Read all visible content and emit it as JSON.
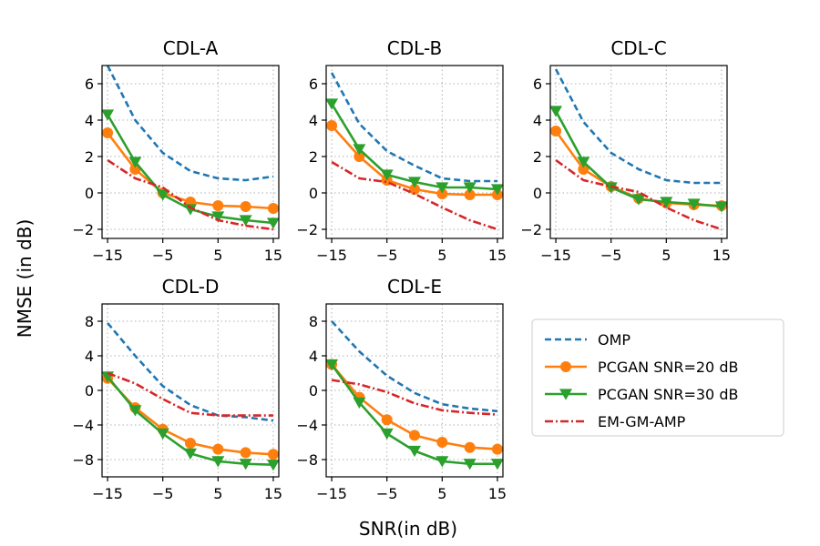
{
  "figure": {
    "xlabel": "SNR(in dB)",
    "ylabel": "NMSE (in dB)"
  },
  "legend": {
    "placement": "right-middle",
    "entries": [
      {
        "name": "OMP",
        "color": "#1f77b4",
        "dash": "dashed",
        "marker": "none"
      },
      {
        "name": "PCGAN SNR=20 dB",
        "color": "#ff7f0e",
        "dash": "solid",
        "marker": "circle"
      },
      {
        "name": "PCGAN SNR=30 dB",
        "color": "#2ca02c",
        "dash": "solid",
        "marker": "triangle-down"
      },
      {
        "name": "EM-GM-AMP",
        "color": "#d62728",
        "dash": "dashdot",
        "marker": "none"
      }
    ]
  },
  "chart_data": [
    {
      "type": "line",
      "title": "CDL-A",
      "grid": true,
      "x": [
        -15,
        -10,
        -5,
        0,
        5,
        10,
        15
      ],
      "xlim": [
        -16,
        16
      ],
      "ylim": [
        -2.5,
        7
      ],
      "xticks": [
        -15,
        -5,
        5,
        15
      ],
      "yticks": [
        -2,
        0,
        2,
        4,
        6
      ],
      "series": [
        {
          "name": "OMP",
          "values": [
            7.0,
            4.0,
            2.2,
            1.2,
            0.8,
            0.7,
            0.9
          ]
        },
        {
          "name": "PCGAN SNR=20 dB",
          "values": [
            3.3,
            1.3,
            0.0,
            -0.5,
            -0.7,
            -0.75,
            -0.85
          ]
        },
        {
          "name": "PCGAN SNR=30 dB",
          "values": [
            4.3,
            1.7,
            -0.1,
            -0.9,
            -1.3,
            -1.5,
            -1.65
          ]
        },
        {
          "name": "EM-GM-AMP",
          "values": [
            1.8,
            0.8,
            0.3,
            -0.8,
            -1.5,
            -1.8,
            -2.0
          ]
        }
      ]
    },
    {
      "type": "line",
      "title": "CDL-B",
      "grid": true,
      "x": [
        -15,
        -10,
        -5,
        0,
        5,
        10,
        15
      ],
      "xlim": [
        -16,
        16
      ],
      "ylim": [
        -2.5,
        7
      ],
      "xticks": [
        -15,
        -5,
        5,
        15
      ],
      "yticks": [
        -2,
        0,
        2,
        4,
        6
      ],
      "series": [
        {
          "name": "OMP",
          "values": [
            6.6,
            3.8,
            2.3,
            1.5,
            0.8,
            0.65,
            0.65
          ]
        },
        {
          "name": "PCGAN SNR=20 dB",
          "values": [
            3.7,
            2.0,
            0.7,
            0.2,
            -0.05,
            -0.1,
            -0.1
          ]
        },
        {
          "name": "PCGAN SNR=30 dB",
          "values": [
            4.9,
            2.4,
            1.0,
            0.6,
            0.3,
            0.3,
            0.2
          ]
        },
        {
          "name": "EM-GM-AMP",
          "values": [
            1.7,
            0.8,
            0.6,
            -0.05,
            -0.8,
            -1.5,
            -2.0
          ]
        }
      ]
    },
    {
      "type": "line",
      "title": "CDL-C",
      "grid": true,
      "x": [
        -15,
        -10,
        -5,
        0,
        5,
        10,
        15
      ],
      "xlim": [
        -16,
        16
      ],
      "ylim": [
        -2.5,
        7
      ],
      "xticks": [
        -15,
        -5,
        5,
        15
      ],
      "yticks": [
        -2,
        0,
        2,
        4,
        6
      ],
      "series": [
        {
          "name": "OMP",
          "values": [
            6.8,
            3.9,
            2.2,
            1.3,
            0.7,
            0.55,
            0.55
          ]
        },
        {
          "name": "PCGAN SNR=20 dB",
          "values": [
            3.4,
            1.3,
            0.35,
            -0.3,
            -0.55,
            -0.65,
            -0.7
          ]
        },
        {
          "name": "PCGAN SNR=30 dB",
          "values": [
            4.5,
            1.7,
            0.3,
            -0.35,
            -0.5,
            -0.6,
            -0.75
          ]
        },
        {
          "name": "EM-GM-AMP",
          "values": [
            1.8,
            0.7,
            0.35,
            0.05,
            -0.8,
            -1.5,
            -2.0
          ]
        }
      ]
    },
    {
      "type": "line",
      "title": "CDL-D",
      "grid": true,
      "x": [
        -15,
        -10,
        -5,
        0,
        5,
        10,
        15
      ],
      "xlim": [
        -16,
        16
      ],
      "ylim": [
        -10,
        10
      ],
      "xticks": [
        -15,
        -5,
        5,
        15
      ],
      "yticks": [
        -8,
        -4,
        0,
        4,
        8
      ],
      "series": [
        {
          "name": "OMP",
          "values": [
            7.8,
            4.0,
            0.5,
            -1.7,
            -2.9,
            -3.1,
            -3.5
          ]
        },
        {
          "name": "PCGAN SNR=20 dB",
          "values": [
            1.4,
            -2.0,
            -4.5,
            -6.1,
            -6.8,
            -7.2,
            -7.4
          ]
        },
        {
          "name": "PCGAN SNR=30 dB",
          "values": [
            1.6,
            -2.3,
            -5.0,
            -7.3,
            -8.2,
            -8.5,
            -8.6
          ]
        },
        {
          "name": "EM-GM-AMP",
          "values": [
            2.0,
            0.8,
            -1.0,
            -2.6,
            -2.9,
            -2.9,
            -2.9
          ]
        }
      ]
    },
    {
      "type": "line",
      "title": "CDL-E",
      "grid": true,
      "x": [
        -15,
        -10,
        -5,
        0,
        5,
        10,
        15
      ],
      "xlim": [
        -16,
        16
      ],
      "ylim": [
        -10,
        10
      ],
      "xticks": [
        -15,
        -5,
        5,
        15
      ],
      "yticks": [
        -8,
        -4,
        0,
        4,
        8
      ],
      "series": [
        {
          "name": "OMP",
          "values": [
            8.0,
            4.5,
            1.7,
            -0.3,
            -1.6,
            -2.1,
            -2.4
          ]
        },
        {
          "name": "PCGAN SNR=20 dB",
          "values": [
            3.0,
            -0.8,
            -3.4,
            -5.2,
            -6.0,
            -6.6,
            -6.8
          ]
        },
        {
          "name": "PCGAN SNR=30 dB",
          "values": [
            3.0,
            -1.4,
            -5.0,
            -7.0,
            -8.2,
            -8.5,
            -8.5
          ]
        },
        {
          "name": "EM-GM-AMP",
          "values": [
            1.2,
            0.7,
            -0.2,
            -1.5,
            -2.3,
            -2.6,
            -2.8
          ]
        }
      ]
    }
  ]
}
